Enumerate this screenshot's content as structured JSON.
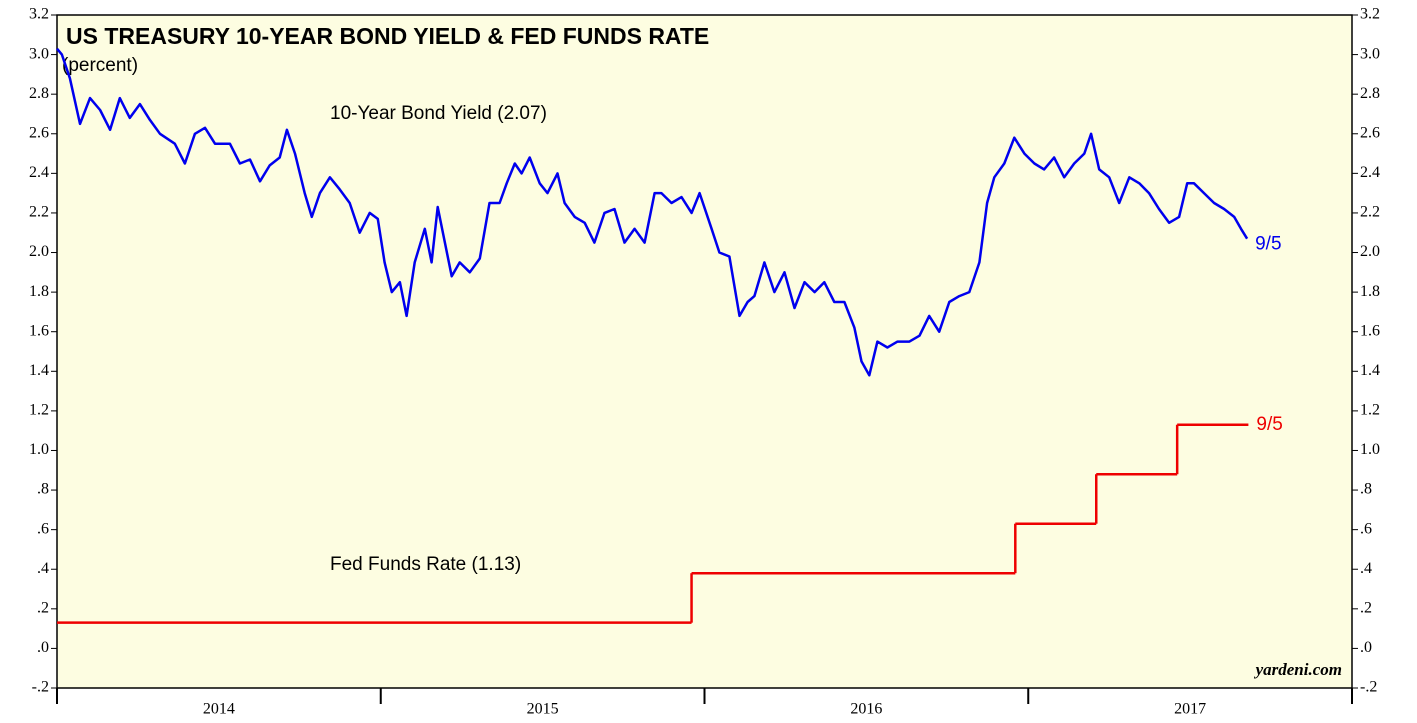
{
  "chart_data": {
    "type": "line",
    "title": "US TREASURY 10-YEAR BOND YIELD & FED FUNDS RATE",
    "subtitle": "(percent)",
    "source": "yardeni.com",
    "background": "#fdfde1",
    "xlim": [
      2014,
      2018
    ],
    "xticks": [
      2014,
      2015,
      2016,
      2017,
      2018
    ],
    "xtick_labels": [
      {
        "value": 2014.5,
        "label": "2014"
      },
      {
        "value": 2015.5,
        "label": "2015"
      },
      {
        "value": 2016.5,
        "label": "2016"
      },
      {
        "value": 2017.5,
        "label": "2017"
      }
    ],
    "ylim": [
      -0.2,
      3.2
    ],
    "yticks": [
      {
        "value": -0.2,
        "label": "-.2"
      },
      {
        "value": 0,
        "label": ".0"
      },
      {
        "value": 0.2,
        "label": ".2"
      },
      {
        "value": 0.4,
        "label": ".4"
      },
      {
        "value": 0.6,
        "label": ".6"
      },
      {
        "value": 0.8,
        "label": ".8"
      },
      {
        "value": 1,
        "label": "1.0"
      },
      1.2,
      1.4,
      1.6,
      1.8,
      {
        "value": 2,
        "label": "2.0"
      },
      2.2,
      2.4,
      2.6,
      2.8,
      {
        "value": 3,
        "label": "3.0"
      },
      3.2
    ],
    "series": [
      {
        "name": "10-Year Bond Yield (2.07)",
        "color": "#0000ee",
        "end_label": "9/5",
        "x": [
          2014.0,
          2014.015,
          2014.04,
          2014.071,
          2014.102,
          2014.133,
          2014.164,
          2014.194,
          2014.225,
          2014.256,
          2014.287,
          2014.318,
          2014.364,
          2014.395,
          2014.426,
          2014.457,
          2014.488,
          2014.534,
          2014.565,
          2014.596,
          2014.627,
          2014.657,
          2014.688,
          2014.71,
          2014.735,
          2014.765,
          2014.787,
          2014.812,
          2014.843,
          2014.873,
          2014.904,
          2014.935,
          2014.966,
          2014.991,
          2015.012,
          2015.034,
          2015.059,
          2015.08,
          2015.105,
          2015.136,
          2015.157,
          2015.176,
          2015.198,
          2015.219,
          2015.244,
          2015.275,
          2015.306,
          2015.336,
          2015.367,
          2015.389,
          2015.414,
          2015.435,
          2015.46,
          2015.491,
          2015.515,
          2015.546,
          2015.568,
          2015.599,
          2015.63,
          2015.66,
          2015.691,
          2015.722,
          2015.753,
          2015.784,
          2015.815,
          2015.846,
          2015.867,
          2015.898,
          2015.929,
          2015.96,
          2015.985,
          2016.022,
          2016.046,
          2016.077,
          2016.108,
          2016.133,
          2016.154,
          2016.185,
          2016.216,
          2016.247,
          2016.278,
          2016.309,
          2016.34,
          2016.37,
          2016.401,
          2016.432,
          2016.463,
          2016.485,
          2016.509,
          2016.534,
          2016.565,
          2016.596,
          2016.633,
          2016.664,
          2016.694,
          2016.725,
          2016.756,
          2016.787,
          2016.818,
          2016.849,
          2016.873,
          2016.895,
          2016.926,
          2016.957,
          2016.988,
          2017.019,
          2017.049,
          2017.08,
          2017.111,
          2017.142,
          2017.173,
          2017.194,
          2017.219,
          2017.25,
          2017.281,
          2017.312,
          2017.343,
          2017.373,
          2017.404,
          2017.435,
          2017.466,
          2017.491,
          2017.512,
          2017.543,
          2017.574,
          2017.605,
          2017.636,
          2017.657,
          2017.676
        ],
        "values": [
          3.03,
          3.0,
          2.88,
          2.65,
          2.78,
          2.72,
          2.62,
          2.78,
          2.68,
          2.75,
          2.67,
          2.6,
          2.55,
          2.45,
          2.6,
          2.63,
          2.55,
          2.55,
          2.45,
          2.47,
          2.36,
          2.44,
          2.48,
          2.62,
          2.5,
          2.3,
          2.18,
          2.3,
          2.38,
          2.32,
          2.25,
          2.1,
          2.2,
          2.17,
          1.95,
          1.8,
          1.85,
          1.68,
          1.95,
          2.12,
          1.95,
          2.23,
          2.05,
          1.88,
          1.95,
          1.9,
          1.97,
          2.25,
          2.25,
          2.35,
          2.45,
          2.4,
          2.48,
          2.35,
          2.3,
          2.4,
          2.25,
          2.18,
          2.15,
          2.05,
          2.2,
          2.22,
          2.05,
          2.12,
          2.05,
          2.3,
          2.3,
          2.25,
          2.28,
          2.2,
          2.3,
          2.12,
          2.0,
          1.98,
          1.68,
          1.75,
          1.78,
          1.95,
          1.8,
          1.9,
          1.72,
          1.85,
          1.8,
          1.85,
          1.75,
          1.75,
          1.62,
          1.45,
          1.38,
          1.55,
          1.52,
          1.55,
          1.55,
          1.58,
          1.68,
          1.6,
          1.75,
          1.78,
          1.8,
          1.95,
          2.25,
          2.38,
          2.45,
          2.58,
          2.5,
          2.45,
          2.42,
          2.48,
          2.38,
          2.45,
          2.5,
          2.6,
          2.42,
          2.38,
          2.25,
          2.38,
          2.35,
          2.3,
          2.22,
          2.15,
          2.18,
          2.35,
          2.35,
          2.3,
          2.25,
          2.22,
          2.18,
          2.12,
          2.07
        ]
      },
      {
        "name": "Fed Funds Rate (1.13)",
        "color": "#ee0000",
        "end_label": "9/5",
        "step": true,
        "x": [
          2014.0,
          2015.96,
          2016.96,
          2017.21,
          2017.46,
          2017.68
        ],
        "values": [
          0.13,
          0.38,
          0.63,
          0.88,
          1.13,
          1.13
        ]
      }
    ]
  }
}
